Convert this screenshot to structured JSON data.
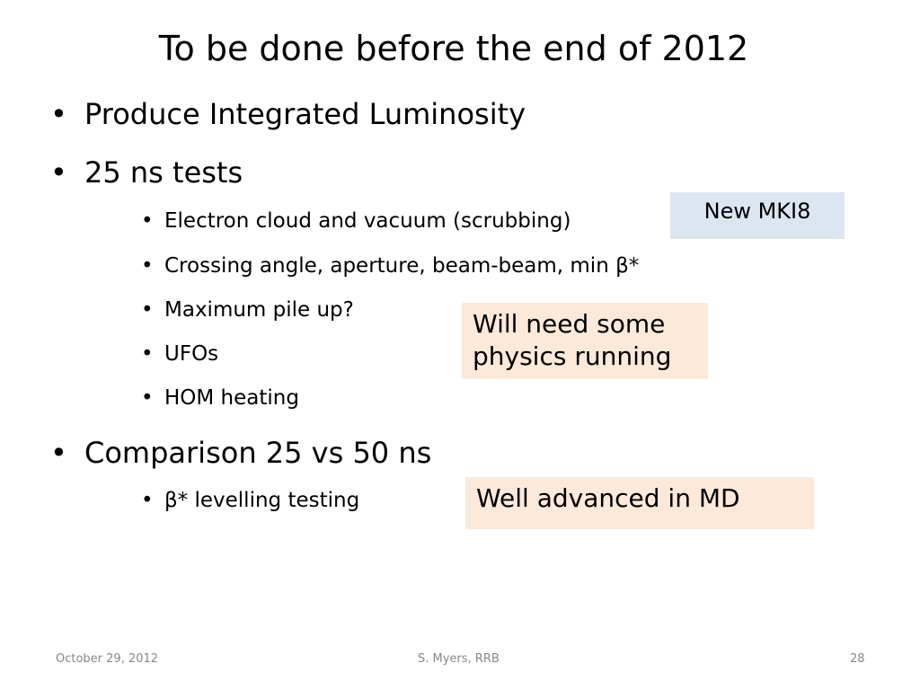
{
  "title": "To be done before the end of 2012",
  "bullets": [
    {
      "text": "Produce Integrated Luminosity",
      "sub": []
    },
    {
      "text": "25 ns tests",
      "sub": [
        "Electron cloud and vacuum (scrubbing)",
        "Crossing angle, aperture, beam-beam, min β*",
        "Maximum pile up?",
        "UFOs",
        "HOM heating"
      ]
    },
    {
      "text": "Comparison 25 vs 50 ns",
      "sub": [
        "β* levelling testing"
      ]
    }
  ],
  "callouts": [
    "New MKI8",
    "Will need some physics running",
    "Well advanced in MD"
  ],
  "footer": {
    "date": "October 29, 2012",
    "author": "S. Myers, RRB",
    "page": "28"
  }
}
